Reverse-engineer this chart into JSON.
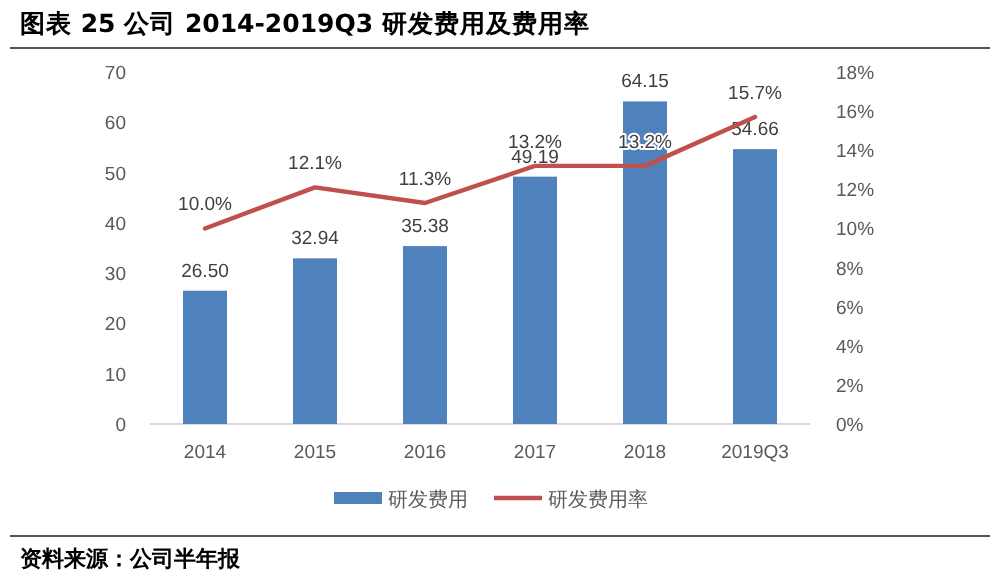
{
  "chart_data": {
    "type": "bar",
    "title": "图表 25 公司 2014-2019Q3 研发费用及费用率",
    "categories": [
      "2014",
      "2015",
      "2016",
      "2017",
      "2018",
      "2019Q3"
    ],
    "series": [
      {
        "name": "研发费用",
        "color": "#4f81bd",
        "values": [
          26.5,
          32.94,
          35.38,
          49.19,
          64.15,
          54.66
        ],
        "value_labels": [
          "26.50",
          "32.94",
          "35.38",
          "49.19",
          "64.15",
          "54.66"
        ]
      },
      {
        "name": "研发费用率",
        "type": "line",
        "axis": "y2",
        "color": "#c0504d",
        "values": [
          10.0,
          12.1,
          11.3,
          13.2,
          13.2,
          15.7
        ],
        "value_labels": [
          "10.0%",
          "12.1%",
          "11.3%",
          "13.2%",
          "13.2%",
          "15.7%"
        ]
      }
    ],
    "ylim": [
      0,
      70
    ],
    "yticks": [
      0,
      10,
      20,
      30,
      40,
      50,
      60,
      70
    ],
    "y2lim": [
      0,
      18
    ],
    "y2ticks": [
      {
        "value": 0,
        "label": "0%"
      },
      {
        "value": 2,
        "label": "2%"
      },
      {
        "value": 4,
        "label": "4%"
      },
      {
        "value": 6,
        "label": "6%"
      },
      {
        "value": 8,
        "label": "8%"
      },
      {
        "value": 10,
        "label": "10%"
      },
      {
        "value": 12,
        "label": "12%"
      },
      {
        "value": 14,
        "label": "14%"
      },
      {
        "value": 16,
        "label": "16%"
      },
      {
        "value": 18,
        "label": "18%"
      }
    ],
    "legend": "bottom",
    "annotations": [
      "资料来源：公司半年报"
    ]
  }
}
